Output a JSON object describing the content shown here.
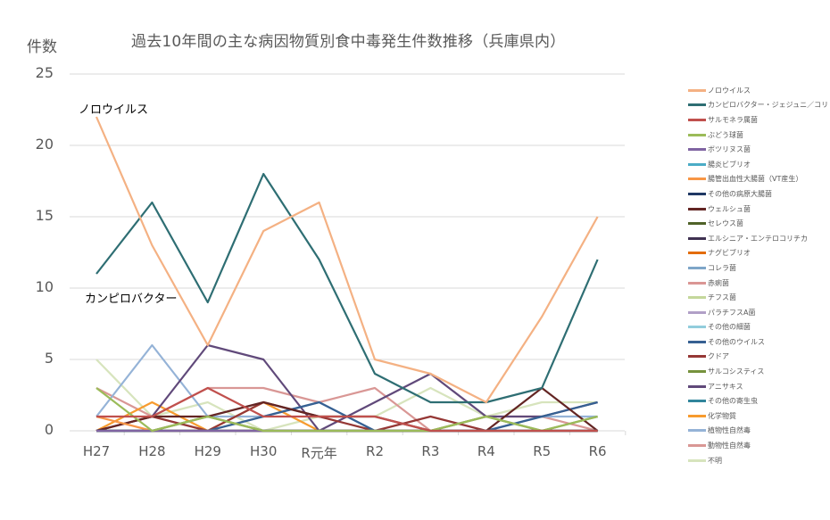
{
  "chart_data": {
    "type": "line",
    "title": "過去10年間の主な病因物質別食中毒発生件数推移（兵庫県内）",
    "xlabel": "",
    "ylabel": "件数",
    "ylim": [
      0,
      25
    ],
    "yticks": [
      0,
      5,
      10,
      15,
      20,
      25
    ],
    "grid": true,
    "legend_position": "right",
    "categories": [
      "H27",
      "H28",
      "H29",
      "H30",
      "R元年",
      "R2",
      "R3",
      "R4",
      "R5",
      "R6"
    ],
    "annotations": [
      {
        "text": "ノロウイルス",
        "x": "H27",
        "y": 22.5
      },
      {
        "text": "カンピロバクター",
        "x": "H27",
        "y": 9.5
      }
    ],
    "series": [
      {
        "name": "ノロウイルス",
        "color": "#F4B183",
        "values": [
          22,
          13,
          6,
          14,
          16,
          5,
          4,
          2,
          8,
          15
        ]
      },
      {
        "name": "カンピロバクター・ジェジュニ／コリ",
        "color": "#2E6E73",
        "values": [
          11,
          16,
          9,
          18,
          12,
          4,
          2,
          2,
          3,
          12
        ]
      },
      {
        "name": "サルモネラ属菌",
        "color": "#C0504D",
        "values": [
          1,
          1,
          3,
          1,
          1,
          1,
          0,
          0,
          0,
          0
        ]
      },
      {
        "name": "ぶどう球菌",
        "color": "#9BBB59",
        "values": [
          3,
          0,
          1,
          0,
          0,
          0,
          0,
          1,
          0,
          1
        ]
      },
      {
        "name": "ボツリヌス菌",
        "color": "#8064A2",
        "values": [
          0,
          0,
          0,
          0,
          0,
          0,
          0,
          0,
          0,
          0
        ]
      },
      {
        "name": "腸炎ビブリオ",
        "color": "#4BACC6",
        "values": [
          0,
          0,
          0,
          0,
          0,
          0,
          0,
          0,
          0,
          0
        ]
      },
      {
        "name": "腸管出血性大腸菌（VT産生）",
        "color": "#F79646",
        "values": [
          1,
          0,
          0,
          0,
          0,
          0,
          0,
          0,
          0,
          0
        ]
      },
      {
        "name": "その他の病原大腸菌",
        "color": "#1F3864",
        "values": [
          0,
          0,
          0,
          0,
          0,
          0,
          0,
          0,
          0,
          0
        ]
      },
      {
        "name": "ウェルシュ菌",
        "color": "#632523",
        "values": [
          0,
          1,
          1,
          2,
          1,
          1,
          0,
          0,
          3,
          0
        ]
      },
      {
        "name": "セレウス菌",
        "color": "#4F6228",
        "values": [
          0,
          0,
          1,
          0,
          0,
          0,
          0,
          0,
          0,
          0
        ]
      },
      {
        "name": "エルシニア・エンテロコリチカ",
        "color": "#3F3151",
        "values": [
          0,
          0,
          0,
          0,
          0,
          0,
          0,
          0,
          0,
          0
        ]
      },
      {
        "name": "ナグビブリオ",
        "color": "#E36C09",
        "values": [
          0,
          0,
          0,
          0,
          0,
          0,
          0,
          0,
          0,
          0
        ]
      },
      {
        "name": "コレラ菌",
        "color": "#7EA6C8",
        "values": [
          0,
          0,
          0,
          0,
          0,
          0,
          0,
          0,
          0,
          0
        ]
      },
      {
        "name": "赤痢菌",
        "color": "#DA9694",
        "values": [
          0,
          0,
          0,
          0,
          0,
          0,
          0,
          0,
          0,
          0
        ]
      },
      {
        "name": "チフス菌",
        "color": "#C4D79B",
        "values": [
          0,
          0,
          0,
          0,
          0,
          0,
          0,
          0,
          0,
          0
        ]
      },
      {
        "name": "パラチフスA菌",
        "color": "#B1A0C7",
        "values": [
          0,
          0,
          0,
          0,
          0,
          0,
          0,
          0,
          0,
          0
        ]
      },
      {
        "name": "その他の細菌",
        "color": "#92CDDC",
        "values": [
          0,
          0,
          0,
          0,
          0,
          0,
          0,
          0,
          0,
          0
        ]
      },
      {
        "name": "その他のウイルス",
        "color": "#366092",
        "values": [
          0,
          0,
          0,
          1,
          2,
          0,
          0,
          0,
          1,
          2
        ]
      },
      {
        "name": "クドア",
        "color": "#953735",
        "values": [
          0,
          1,
          0,
          2,
          1,
          0,
          1,
          0,
          0,
          0
        ]
      },
      {
        "name": "サルコシスティス",
        "color": "#76923C",
        "values": [
          0,
          0,
          0,
          0,
          0,
          0,
          0,
          1,
          0,
          1
        ]
      },
      {
        "name": "アニサキス",
        "color": "#60497A",
        "values": [
          0,
          1,
          6,
          5,
          0,
          2,
          4,
          1,
          1,
          2
        ]
      },
      {
        "name": "その他の寄生虫",
        "color": "#31859C",
        "values": [
          0,
          0,
          0,
          0,
          0,
          0,
          0,
          0,
          0,
          0
        ]
      },
      {
        "name": "化学物質",
        "color": "#F79B2E",
        "values": [
          0,
          2,
          0,
          2,
          0,
          0,
          0,
          0,
          0,
          0
        ]
      },
      {
        "name": "植物性自然毒",
        "color": "#95B3D7",
        "values": [
          1,
          6,
          1,
          1,
          2,
          0,
          0,
          0,
          1,
          1
        ]
      },
      {
        "name": "動物性自然毒",
        "color": "#D99795",
        "values": [
          3,
          1,
          3,
          3,
          2,
          3,
          0,
          1,
          1,
          0
        ]
      },
      {
        "name": "不明",
        "color": "#D7E4BD",
        "values": [
          5,
          1,
          2,
          0,
          1,
          1,
          3,
          1,
          2,
          2
        ]
      }
    ]
  }
}
